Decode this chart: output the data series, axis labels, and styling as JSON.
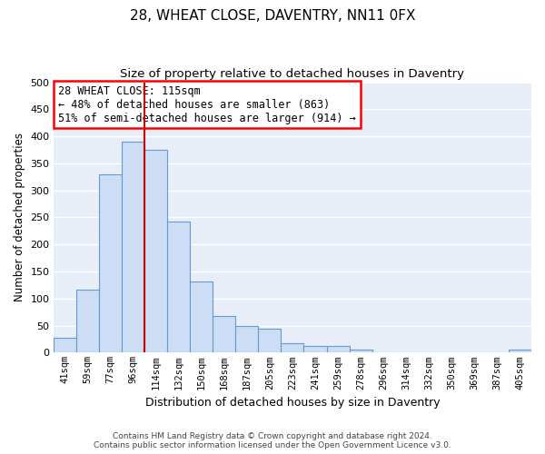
{
  "title": "28, WHEAT CLOSE, DAVENTRY, NN11 0FX",
  "subtitle": "Size of property relative to detached houses in Daventry",
  "xlabel": "Distribution of detached houses by size in Daventry",
  "ylabel": "Number of detached properties",
  "categories": [
    "41sqm",
    "59sqm",
    "77sqm",
    "96sqm",
    "114sqm",
    "132sqm",
    "150sqm",
    "168sqm",
    "187sqm",
    "205sqm",
    "223sqm",
    "241sqm",
    "259sqm",
    "278sqm",
    "296sqm",
    "314sqm",
    "332sqm",
    "350sqm",
    "369sqm",
    "387sqm",
    "405sqm"
  ],
  "values": [
    27,
    117,
    330,
    390,
    375,
    242,
    132,
    68,
    50,
    45,
    18,
    12,
    13,
    5,
    0,
    0,
    0,
    0,
    0,
    0,
    5
  ],
  "bar_color": "#ccddf5",
  "bar_edge_color": "#6699cc",
  "vline_index": 4,
  "vline_color": "#cc0000",
  "annotation_text": "28 WHEAT CLOSE: 115sqm\n← 48% of detached houses are smaller (863)\n51% of semi-detached houses are larger (914) →",
  "ylim": [
    0,
    500
  ],
  "yticks": [
    0,
    50,
    100,
    150,
    200,
    250,
    300,
    350,
    400,
    450,
    500
  ],
  "fig_bg_color": "#ffffff",
  "plot_bg_color": "#e8eef8",
  "grid_color": "#ffffff",
  "footer": "Contains HM Land Registry data © Crown copyright and database right 2024.\nContains public sector information licensed under the Open Government Licence v3.0.",
  "title_fontsize": 11,
  "subtitle_fontsize": 9.5,
  "ylabel_fontsize": 8.5,
  "xlabel_fontsize": 9
}
